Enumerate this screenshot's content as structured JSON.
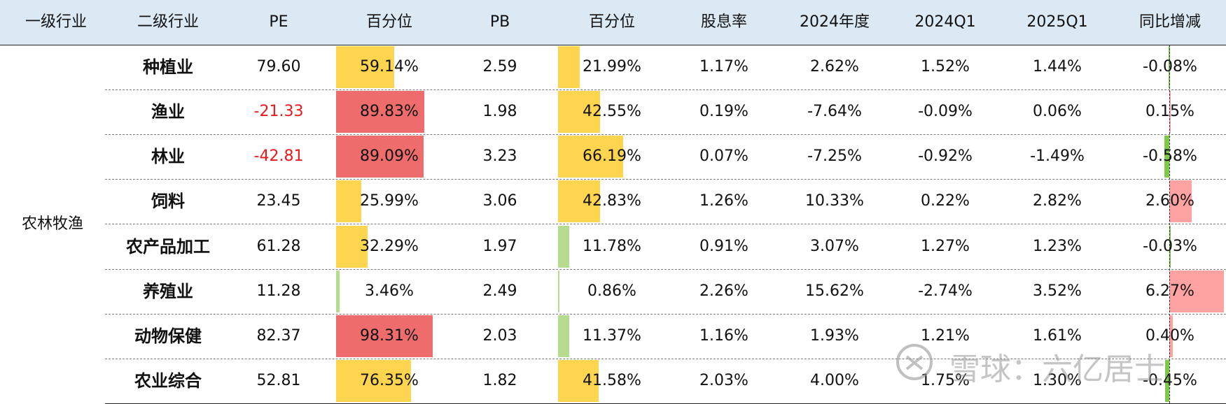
{
  "colors": {
    "header_bg": "#dbe9f5",
    "bar_yellow": "#ffd54f",
    "bar_red": "#ef6c6c",
    "bar_green": "#b5dc8e",
    "bar_pink": "#ffa2a2",
    "bar_lime": "#7ec84a",
    "negative_text": "#e8191c"
  },
  "headers": [
    "一级行业",
    "二级行业",
    "PE",
    "百分位",
    "PB",
    "百分位",
    "股息率",
    "2024年度",
    "2024Q1",
    "2025Q1",
    "同比增减"
  ],
  "group": "农林牧渔",
  "rows": [
    {
      "name": "种植业",
      "pe": "79.60",
      "pe_pct": "59.14%",
      "pe_pct_value": 0.5914,
      "pb": "2.59",
      "pb_pct": "21.99%",
      "pb_pct_value": 0.2199,
      "div": "1.17%",
      "y2024": "2.62%",
      "q2024": "1.52%",
      "q2025": "1.44%",
      "yoy": "-0.08%",
      "yoy_value": -0.08
    },
    {
      "name": "渔业",
      "pe": "-21.33",
      "pe_pct": "89.83%",
      "pe_pct_value": 0.8983,
      "pb": "1.98",
      "pb_pct": "42.55%",
      "pb_pct_value": 0.4255,
      "div": "0.19%",
      "y2024": "-7.64%",
      "q2024": "-0.09%",
      "q2025": "0.06%",
      "yoy": "0.15%",
      "yoy_value": 0.15
    },
    {
      "name": "林业",
      "pe": "-42.81",
      "pe_pct": "89.09%",
      "pe_pct_value": 0.8909,
      "pb": "3.23",
      "pb_pct": "66.19%",
      "pb_pct_value": 0.6619,
      "div": "0.07%",
      "y2024": "-7.25%",
      "q2024": "-0.92%",
      "q2025": "-1.49%",
      "yoy": "-0.58%",
      "yoy_value": -0.58
    },
    {
      "name": "饲料",
      "pe": "23.45",
      "pe_pct": "25.99%",
      "pe_pct_value": 0.2599,
      "pb": "3.06",
      "pb_pct": "42.83%",
      "pb_pct_value": 0.4283,
      "div": "1.26%",
      "y2024": "10.33%",
      "q2024": "0.22%",
      "q2025": "2.82%",
      "yoy": "2.60%",
      "yoy_value": 2.6
    },
    {
      "name": "农产品加工",
      "pe": "61.28",
      "pe_pct": "32.29%",
      "pe_pct_value": 0.3229,
      "pb": "1.97",
      "pb_pct": "11.78%",
      "pb_pct_value": 0.1178,
      "div": "0.91%",
      "y2024": "3.07%",
      "q2024": "1.27%",
      "q2025": "1.23%",
      "yoy": "-0.03%",
      "yoy_value": -0.03
    },
    {
      "name": "养殖业",
      "pe": "11.28",
      "pe_pct": "3.46%",
      "pe_pct_value": 0.0346,
      "pb": "2.49",
      "pb_pct": "0.86%",
      "pb_pct_value": 0.0086,
      "div": "2.26%",
      "y2024": "15.62%",
      "q2024": "-2.74%",
      "q2025": "3.52%",
      "yoy": "6.27%",
      "yoy_value": 6.27
    },
    {
      "name": "动物保健",
      "pe": "82.37",
      "pe_pct": "98.31%",
      "pe_pct_value": 0.9831,
      "pb": "2.03",
      "pb_pct": "11.37%",
      "pb_pct_value": 0.1137,
      "div": "1.16%",
      "y2024": "1.93%",
      "q2024": "1.21%",
      "q2025": "1.61%",
      "yoy": "0.40%",
      "yoy_value": 0.4
    },
    {
      "name": "农业综合",
      "pe": "52.81",
      "pe_pct": "76.35%",
      "pe_pct_value": 0.7635,
      "pb": "1.82",
      "pb_pct": "41.58%",
      "pb_pct_value": 0.4158,
      "div": "2.03%",
      "y2024": "4.00%",
      "q2024": "1.75%",
      "q2025": "1.30%",
      "yoy": "-0.45%",
      "yoy_value": -0.45
    }
  ],
  "watermark": "雪球：六亿居士"
}
